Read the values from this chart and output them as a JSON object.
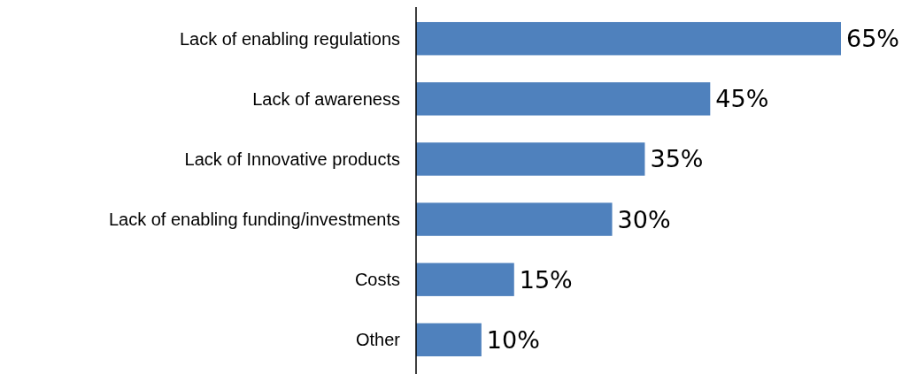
{
  "chart_data": {
    "type": "bar",
    "orientation": "horizontal",
    "categories": [
      "Lack of enabling regulations",
      "Lack of awareness",
      "Lack of Innovative products",
      "Lack of enabling funding/investments",
      "Costs",
      "Other"
    ],
    "values": [
      65,
      45,
      35,
      30,
      15,
      10
    ],
    "value_labels": [
      "65%",
      "45%",
      "35%",
      "30%",
      "15%",
      "10%"
    ],
    "color": "#4f81bd"
  }
}
